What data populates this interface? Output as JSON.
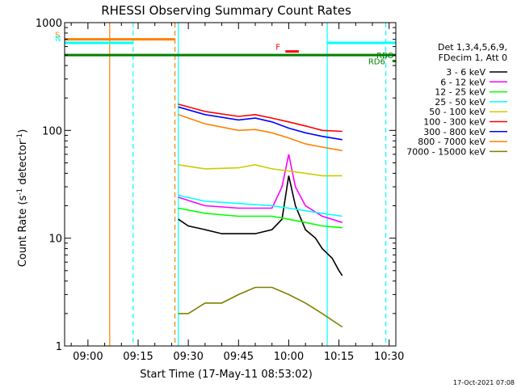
{
  "chart_data": {
    "type": "line",
    "title": "RHESSI Observing Summary Count Rates",
    "xlabel": "Start Time (17-May-11 08:53:02)",
    "ylabel_main": "Count Rate (s",
    "ylabel_sup1": "-1",
    "ylabel_mid": " detector",
    "ylabel_sup2": "-1",
    "ylabel_end": ")",
    "yscale": "log",
    "ylim": [
      1,
      1000
    ],
    "xlim": [
      "08:53:02",
      "10:32:00"
    ],
    "x_ticks": [
      "09:00",
      "09:15",
      "09:30",
      "09:45",
      "10:00",
      "10:15",
      "10:30"
    ],
    "y_ticks": [
      "1",
      "10",
      "100",
      "1000"
    ],
    "timestamp": "17-Oct-2021 07:08",
    "legend_header": [
      "Det 1,3,4,5,6,9,",
      "FDecim 1, Att 0"
    ],
    "series": [
      {
        "name": "3 - 6 keV",
        "color": "#000000",
        "x": [
          "09:27",
          "09:30",
          "09:35",
          "09:40",
          "09:45",
          "09:50",
          "09:55",
          "09:58",
          "10:00",
          "10:02",
          "10:05",
          "10:08",
          "10:10",
          "10:13",
          "10:15",
          "10:16"
        ],
        "values": [
          15,
          13,
          12,
          11,
          11,
          11,
          12,
          15,
          38,
          20,
          12,
          10,
          8,
          6.5,
          5,
          4.5
        ]
      },
      {
        "name": "6 - 12 keV",
        "color": "#ff00ff",
        "x": [
          "09:27",
          "09:35",
          "09:45",
          "09:55",
          "09:58",
          "10:00",
          "10:02",
          "10:05",
          "10:10",
          "10:16"
        ],
        "values": [
          24,
          20,
          19,
          19,
          30,
          60,
          30,
          20,
          16,
          14
        ]
      },
      {
        "name": "12 - 25 keV",
        "color": "#00ff00",
        "x": [
          "09:27",
          "09:35",
          "09:45",
          "09:55",
          "10:00",
          "10:05",
          "10:10",
          "10:16"
        ],
        "values": [
          19,
          17,
          16,
          16,
          15,
          14,
          13,
          12.5
        ]
      },
      {
        "name": "25 - 50 keV",
        "color": "#00ffff",
        "x": [
          "09:27",
          "09:35",
          "09:45",
          "09:55",
          "10:00",
          "10:05",
          "10:10",
          "10:16"
        ],
        "values": [
          25,
          22,
          21,
          20,
          19,
          18,
          17,
          16
        ]
      },
      {
        "name": "50 - 100 keV",
        "color": "#cccc00",
        "x": [
          "09:27",
          "09:35",
          "09:45",
          "09:50",
          "09:55",
          "10:00",
          "10:05",
          "10:10",
          "10:16"
        ],
        "values": [
          48,
          44,
          45,
          48,
          44,
          42,
          40,
          38,
          38
        ]
      },
      {
        "name": "100 - 300 keV",
        "color": "#ff0000",
        "x": [
          "09:27",
          "09:35",
          "09:45",
          "09:50",
          "09:55",
          "10:00",
          "10:05",
          "10:10",
          "10:16"
        ],
        "values": [
          175,
          150,
          135,
          140,
          130,
          120,
          110,
          100,
          98
        ]
      },
      {
        "name": "300 - 800 keV",
        "color": "#0000ff",
        "x": [
          "09:27",
          "09:35",
          "09:45",
          "09:50",
          "09:55",
          "10:00",
          "10:05",
          "10:10",
          "10:16"
        ],
        "values": [
          165,
          140,
          125,
          130,
          120,
          105,
          95,
          88,
          82
        ]
      },
      {
        "name": "800 - 7000 keV",
        "color": "#ff8000",
        "x": [
          "09:27",
          "09:35",
          "09:45",
          "09:50",
          "09:55",
          "10:00",
          "10:05",
          "10:10",
          "10:16"
        ],
        "values": [
          140,
          115,
          100,
          102,
          95,
          85,
          75,
          70,
          65
        ]
      },
      {
        "name": "7000 - 15000 keV",
        "color": "#808000",
        "x": [
          "09:27",
          "09:30",
          "09:35",
          "09:40",
          "09:45",
          "09:50",
          "09:55",
          "10:00",
          "10:05",
          "10:10",
          "10:16"
        ],
        "values": [
          2,
          2,
          2.5,
          2.5,
          3,
          3.5,
          3.5,
          3,
          2.5,
          2,
          1.5
        ]
      }
    ],
    "flags": [
      {
        "label": "S",
        "color": "#ff8000",
        "x_start": "08:53:02",
        "x_end": "09:26:00",
        "level": 700
      },
      {
        "label": "N",
        "color": "#00ffff",
        "x_start": "08:53:02",
        "x_end": "09:13:30",
        "level": 650
      },
      {
        "label": "F",
        "color": "#ff0000",
        "x_start": "09:59:00",
        "x_end": "10:03:00",
        "level": 540
      },
      {
        "label": "RBO",
        "color": "#008000",
        "x_start": "08:53:02",
        "x_end": "10:32:00",
        "level": 500
      },
      {
        "label": "RD6",
        "color": "#008000",
        "x_start": "10:31:00",
        "x_end": "10:32:00",
        "level": 440
      },
      {
        "label": "",
        "color": "#00ffff",
        "x_start": "10:11:30",
        "x_end": "10:32:00",
        "level": 650
      }
    ],
    "vlines": [
      {
        "x": "09:06:30",
        "color": "#ff8000",
        "style": "solid"
      },
      {
        "x": "09:13:30",
        "color": "#00ffff",
        "style": "dashed"
      },
      {
        "x": "09:26:00",
        "color": "#ff8000",
        "style": "dashed"
      },
      {
        "x": "09:27:00",
        "color": "#00ffff",
        "style": "solid"
      },
      {
        "x": "10:11:30",
        "color": "#00ffff",
        "style": "solid"
      },
      {
        "x": "10:29:00",
        "color": "#00ffff",
        "style": "dashed"
      }
    ]
  }
}
